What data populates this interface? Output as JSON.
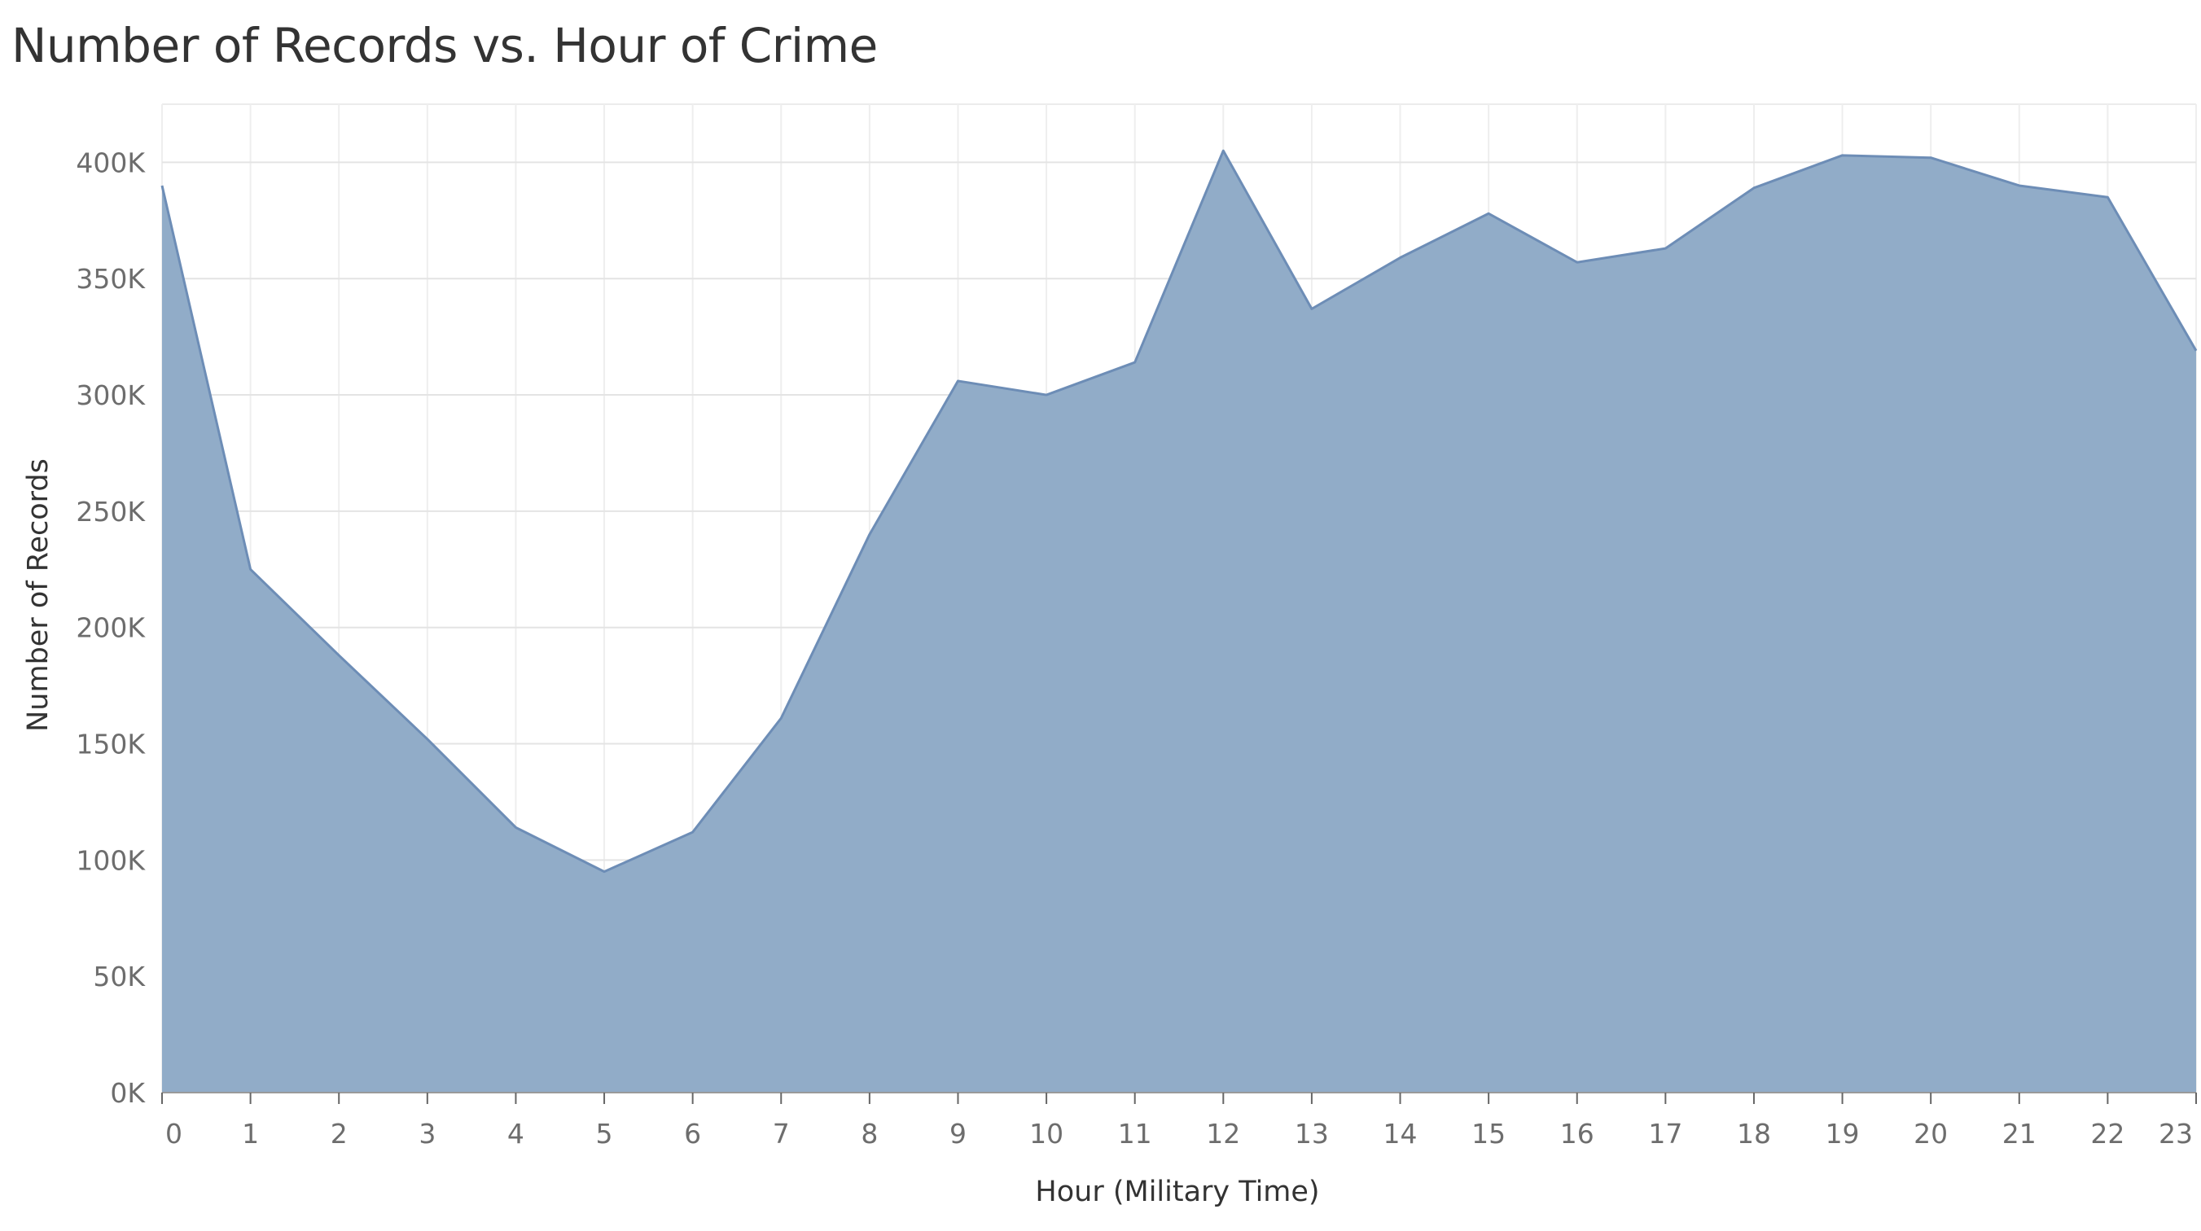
{
  "chart_data": {
    "type": "area",
    "title": "Number of Records vs. Hour of Crime",
    "xlabel": "Hour (Military Time)",
    "ylabel": "Number of Records",
    "x": [
      0,
      1,
      2,
      3,
      4,
      5,
      6,
      7,
      8,
      9,
      10,
      11,
      12,
      13,
      14,
      15,
      16,
      17,
      18,
      19,
      20,
      21,
      22,
      23
    ],
    "x_tick_labels": [
      "0",
      "1",
      "2",
      "3",
      "4",
      "5",
      "6",
      "7",
      "8",
      "9",
      "10",
      "11",
      "12",
      "13",
      "14",
      "15",
      "16",
      "17",
      "18",
      "19",
      "20",
      "21",
      "22",
      "23"
    ],
    "series": [
      {
        "values": [
          390000,
          225000,
          188000,
          152000,
          114000,
          95000,
          112000,
          161000,
          240000,
          306000,
          300000,
          314000,
          405000,
          337000,
          359000,
          378000,
          357000,
          363000,
          389000,
          403000,
          402000,
          390000,
          385000,
          319000
        ]
      }
    ],
    "ylim": [
      0,
      425000
    ],
    "y_ticks": [
      0,
      50000,
      100000,
      150000,
      200000,
      250000,
      300000,
      350000,
      400000
    ],
    "y_tick_labels": [
      "0K",
      "50K",
      "100K",
      "150K",
      "200K",
      "250K",
      "300K",
      "350K",
      "400K"
    ],
    "grid": true,
    "legend": "none",
    "colors": {
      "area_fill": "#8faac7",
      "area_line": "#6d8db6"
    }
  }
}
